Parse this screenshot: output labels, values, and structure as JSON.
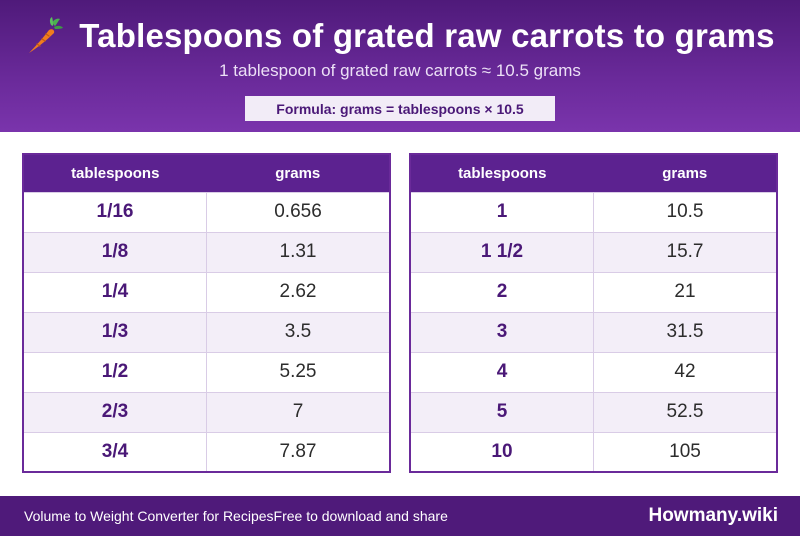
{
  "header": {
    "icon": "carrot-icon",
    "title": "Tablespoons of grated raw carrots to grams",
    "subtitle": "1 tablespoon of grated raw carrots ≈ 10.5 grams",
    "formula": "Formula: grams = tablespoons × 10.5"
  },
  "tables": [
    {
      "headers": [
        "tablespoons",
        "grams"
      ],
      "rows": [
        [
          "1/16",
          "0.656"
        ],
        [
          "1/8",
          "1.31"
        ],
        [
          "1/4",
          "2.62"
        ],
        [
          "1/3",
          "3.5"
        ],
        [
          "1/2",
          "5.25"
        ],
        [
          "2/3",
          "7"
        ],
        [
          "3/4",
          "7.87"
        ]
      ]
    },
    {
      "headers": [
        "tablespoons",
        "grams"
      ],
      "rows": [
        [
          "1",
          "10.5"
        ],
        [
          "1 1/2",
          "15.7"
        ],
        [
          "2",
          "21"
        ],
        [
          "3",
          "31.5"
        ],
        [
          "4",
          "42"
        ],
        [
          "5",
          "52.5"
        ],
        [
          "10",
          "105"
        ]
      ]
    }
  ],
  "footer": {
    "left_text": "Volume to Weight Converter for Recipes",
    "middle_text": "Free to download and share",
    "brand": "Howmany.wiki"
  },
  "colors": {
    "header_bg": "#5c2290",
    "accent": "#4a1877",
    "row_alt": "#f3eef8",
    "carrot_orange": "#f07c1e",
    "carrot_leaf": "#4caf50"
  }
}
